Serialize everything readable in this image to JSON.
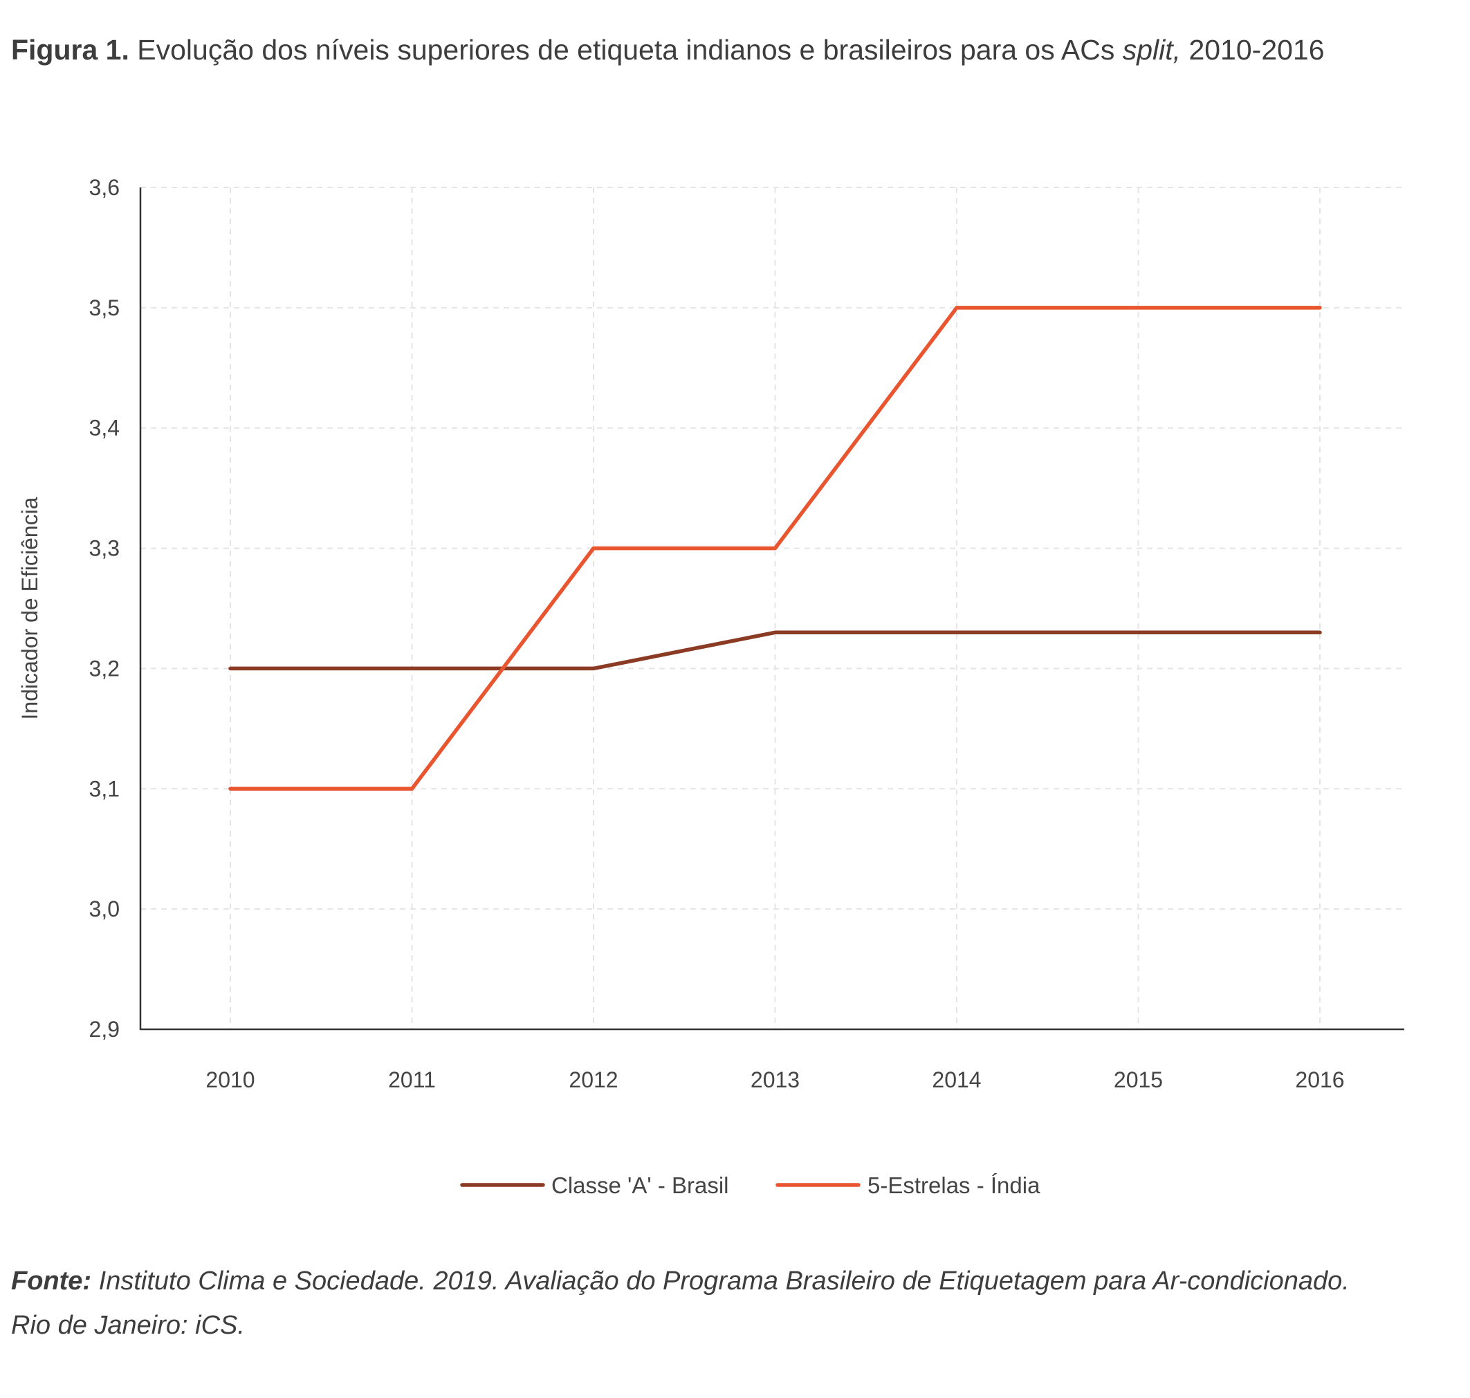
{
  "figure": {
    "label": "Figura 1.",
    "title_main": "Evolução dos níveis superiores de etiqueta indianos e brasileiros para os ACs",
    "title_italic": "split,",
    "title_tail": "2010-2016"
  },
  "source": {
    "label": "Fonte:",
    "line1": "Instituto Clima e Sociedade. 2019. Avaliação do Programa Brasileiro de Etiquetagem para Ar-condicionado.",
    "line2": "Rio de Janeiro: iCS."
  },
  "chart_data": {
    "type": "line",
    "x": [
      "2010",
      "2011",
      "2012",
      "2013",
      "2014",
      "2015",
      "2016"
    ],
    "ylabel": "Indicador de Eficiência",
    "xlabel": "",
    "ylim": [
      2.9,
      3.6
    ],
    "yticks": [
      "2,9",
      "3,0",
      "3,1",
      "3,2",
      "3,3",
      "3,4",
      "3,5",
      "3,6"
    ],
    "grid": true,
    "legend_position": "bottom",
    "series": [
      {
        "name": "Classe 'A' - Brasil",
        "color": "#8b3a24",
        "values": [
          3.2,
          3.2,
          3.2,
          3.23,
          3.23,
          3.23,
          3.23
        ]
      },
      {
        "name": "5-Estrelas - Índia",
        "color": "#e8552f",
        "values": [
          3.1,
          3.1,
          3.3,
          3.3,
          3.5,
          3.5,
          3.5
        ]
      }
    ]
  }
}
